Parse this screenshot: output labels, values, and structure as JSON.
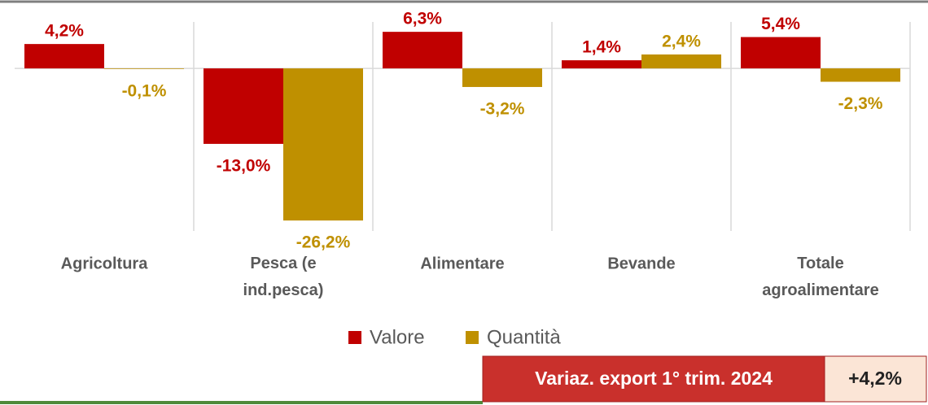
{
  "chart_data": {
    "type": "bar",
    "categories": [
      "Agricoltura",
      "Pesca (e ind.pesca)",
      "Alimentare",
      "Bevande",
      "Totale agroalimentare"
    ],
    "series": [
      {
        "name": "Valore",
        "color": "#c00000",
        "values": [
          4.2,
          -13.0,
          6.3,
          1.4,
          5.4
        ],
        "value_labels": [
          "4,2%",
          "-13,0%",
          "6,3%",
          "1,4%",
          "5,4%"
        ]
      },
      {
        "name": "Quantità",
        "color": "#bf9000",
        "values": [
          -0.1,
          -26.2,
          -3.2,
          2.4,
          -2.3
        ],
        "value_labels": [
          "-0,1%",
          "-26,2%",
          "-3,2%",
          "2,4%",
          "-2,3%"
        ]
      }
    ],
    "ylim": [
      -28,
      8
    ],
    "grid": true,
    "summary": {
      "label": "Variaz. export 1° trim. 2024",
      "value": "+4,2%"
    }
  }
}
